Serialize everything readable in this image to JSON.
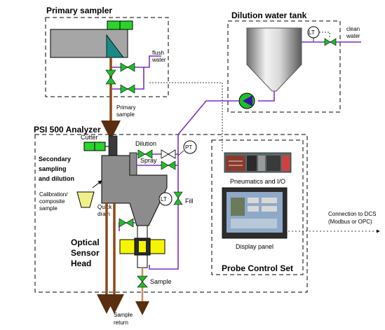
{
  "titles": {
    "primary_sampler": "Primary sampler",
    "dilution_tank": "Dilution water tank",
    "analyzer": "PSI 500 Analyzer",
    "probe_control": "Probe Control Set"
  },
  "labels": {
    "flush_water_1": "flush",
    "flush_water_2": "water",
    "primary_sample_1": "Primary",
    "primary_sample_2": "sample",
    "clean_water_1": "clean",
    "clean_water_2": "water",
    "cutter": "Cutter",
    "dilution": "Dilution",
    "spray": "Spray",
    "fill": "Fill",
    "secondary_1": "Secondary",
    "secondary_2": "sampling",
    "secondary_3": "and dilution",
    "calibration_1": "Calibration/",
    "calibration_2": "composite",
    "calibration_3": "sample",
    "quick_drain_1": "Quick",
    "quick_drain_2": "drain",
    "optical_1": "Optical",
    "optical_2": "Sensor",
    "optical_3": "Head",
    "sample": "Sample",
    "sample_return_1": "Sample",
    "sample_return_2": "return",
    "pneumatics": "Pneumatics and I/O",
    "display_panel": "Display panel",
    "dcs_1": "Connection to DCS",
    "dcs_2": "(Modbus or OPC)",
    "lt_tank": "LT",
    "lt_analyzer": "LT",
    "pt": "PT"
  },
  "colors": {
    "water_line": "#7a2fc8",
    "sample_line": "#8b4a1c",
    "valve": "#1fbf2a",
    "cutter_block": "#2ad42a",
    "vessel": "#8c8c8c",
    "sensor_yellow": "#f5f500",
    "pump": "#1fbf2a"
  }
}
